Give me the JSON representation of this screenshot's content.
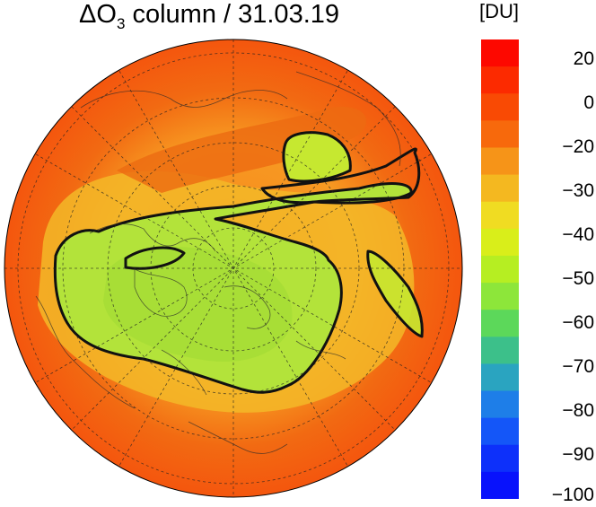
{
  "title": {
    "delta": "ΔO",
    "sub": "3",
    "rest": " column / 31.03.19"
  },
  "colorbar": {
    "unit": "[DU]",
    "labels": [
      "20",
      "0",
      "−20",
      "−30",
      "−40",
      "−50",
      "−60",
      "−70",
      "−80",
      "−90",
      "−100"
    ],
    "colors": [
      "#fd0800",
      "#fc2a00",
      "#f94a04",
      "#f7690c",
      "#f69418",
      "#f4b820",
      "#f0dc22",
      "#d9ee1a",
      "#b6ee22",
      "#8de63a",
      "#5cd85a",
      "#3cc08a",
      "#2aa4c0",
      "#1e7ee8",
      "#1456f8",
      "#0d30fa",
      "#0812fc"
    ]
  },
  "map": {
    "projection": "north-polar-stereographic",
    "colors": {
      "outer": "#f85c10",
      "band": "#f7851c",
      "ring": "#f3b828",
      "ridge": "#ec6a12",
      "vortex": "#b3e33a",
      "vortex_core": "#a8de36",
      "contour": "#111111",
      "graticule": "#222222"
    }
  }
}
